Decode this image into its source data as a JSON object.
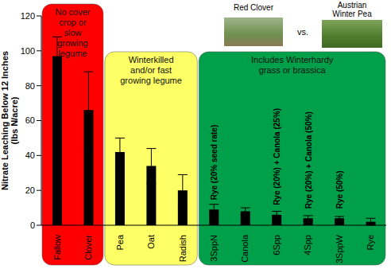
{
  "chart_data": {
    "type": "bar",
    "y_label": "Nitrate Leaching Below 12 Inches (lbs N/acre)",
    "categories": [
      "Fallow",
      "Clover",
      "Pea",
      "Oat",
      "Radish",
      "3SppN",
      "Canola",
      "6Spp",
      "4Spp",
      "3SppW",
      "Rye"
    ],
    "values": [
      97,
      66,
      42,
      34,
      20,
      9,
      8,
      6,
      4,
      4,
      2
    ],
    "errors": [
      11,
      22,
      8,
      10,
      9,
      3,
      2,
      2,
      1.5,
      1,
      2
    ],
    "bar_annotations": [
      null,
      null,
      null,
      null,
      null,
      "Rye (20% seed rate)",
      null,
      "Rye (20%) + Canola (25%)",
      "Rye (20%) + Canola (50%)",
      "Rye (50%)",
      null
    ],
    "color": "#000000",
    "ylim": [
      0,
      120
    ],
    "yticks": [
      0,
      20,
      40,
      60,
      80,
      100,
      120
    ],
    "groups": [
      {
        "label": "No cover crop or slow growing legume",
        "color": "#ff0000",
        "members": [
          "Fallow",
          "Clover"
        ]
      },
      {
        "label": "Winterkilled and/or fast growing legume",
        "color": "#ffff66",
        "members": [
          "Pea",
          "Oat",
          "Radish"
        ]
      },
      {
        "label": "Includes Winterhardy grass or brassica",
        "color": "#00a04a",
        "members": [
          "3SppN",
          "Canola",
          "6Spp",
          "4Spp",
          "3SppW",
          "Rye"
        ]
      }
    ],
    "photos": [
      {
        "caption": "Red Clover"
      },
      {
        "caption": "Austrian Winter Pea"
      }
    ],
    "photo_separator": "vs.",
    "grid": false
  }
}
